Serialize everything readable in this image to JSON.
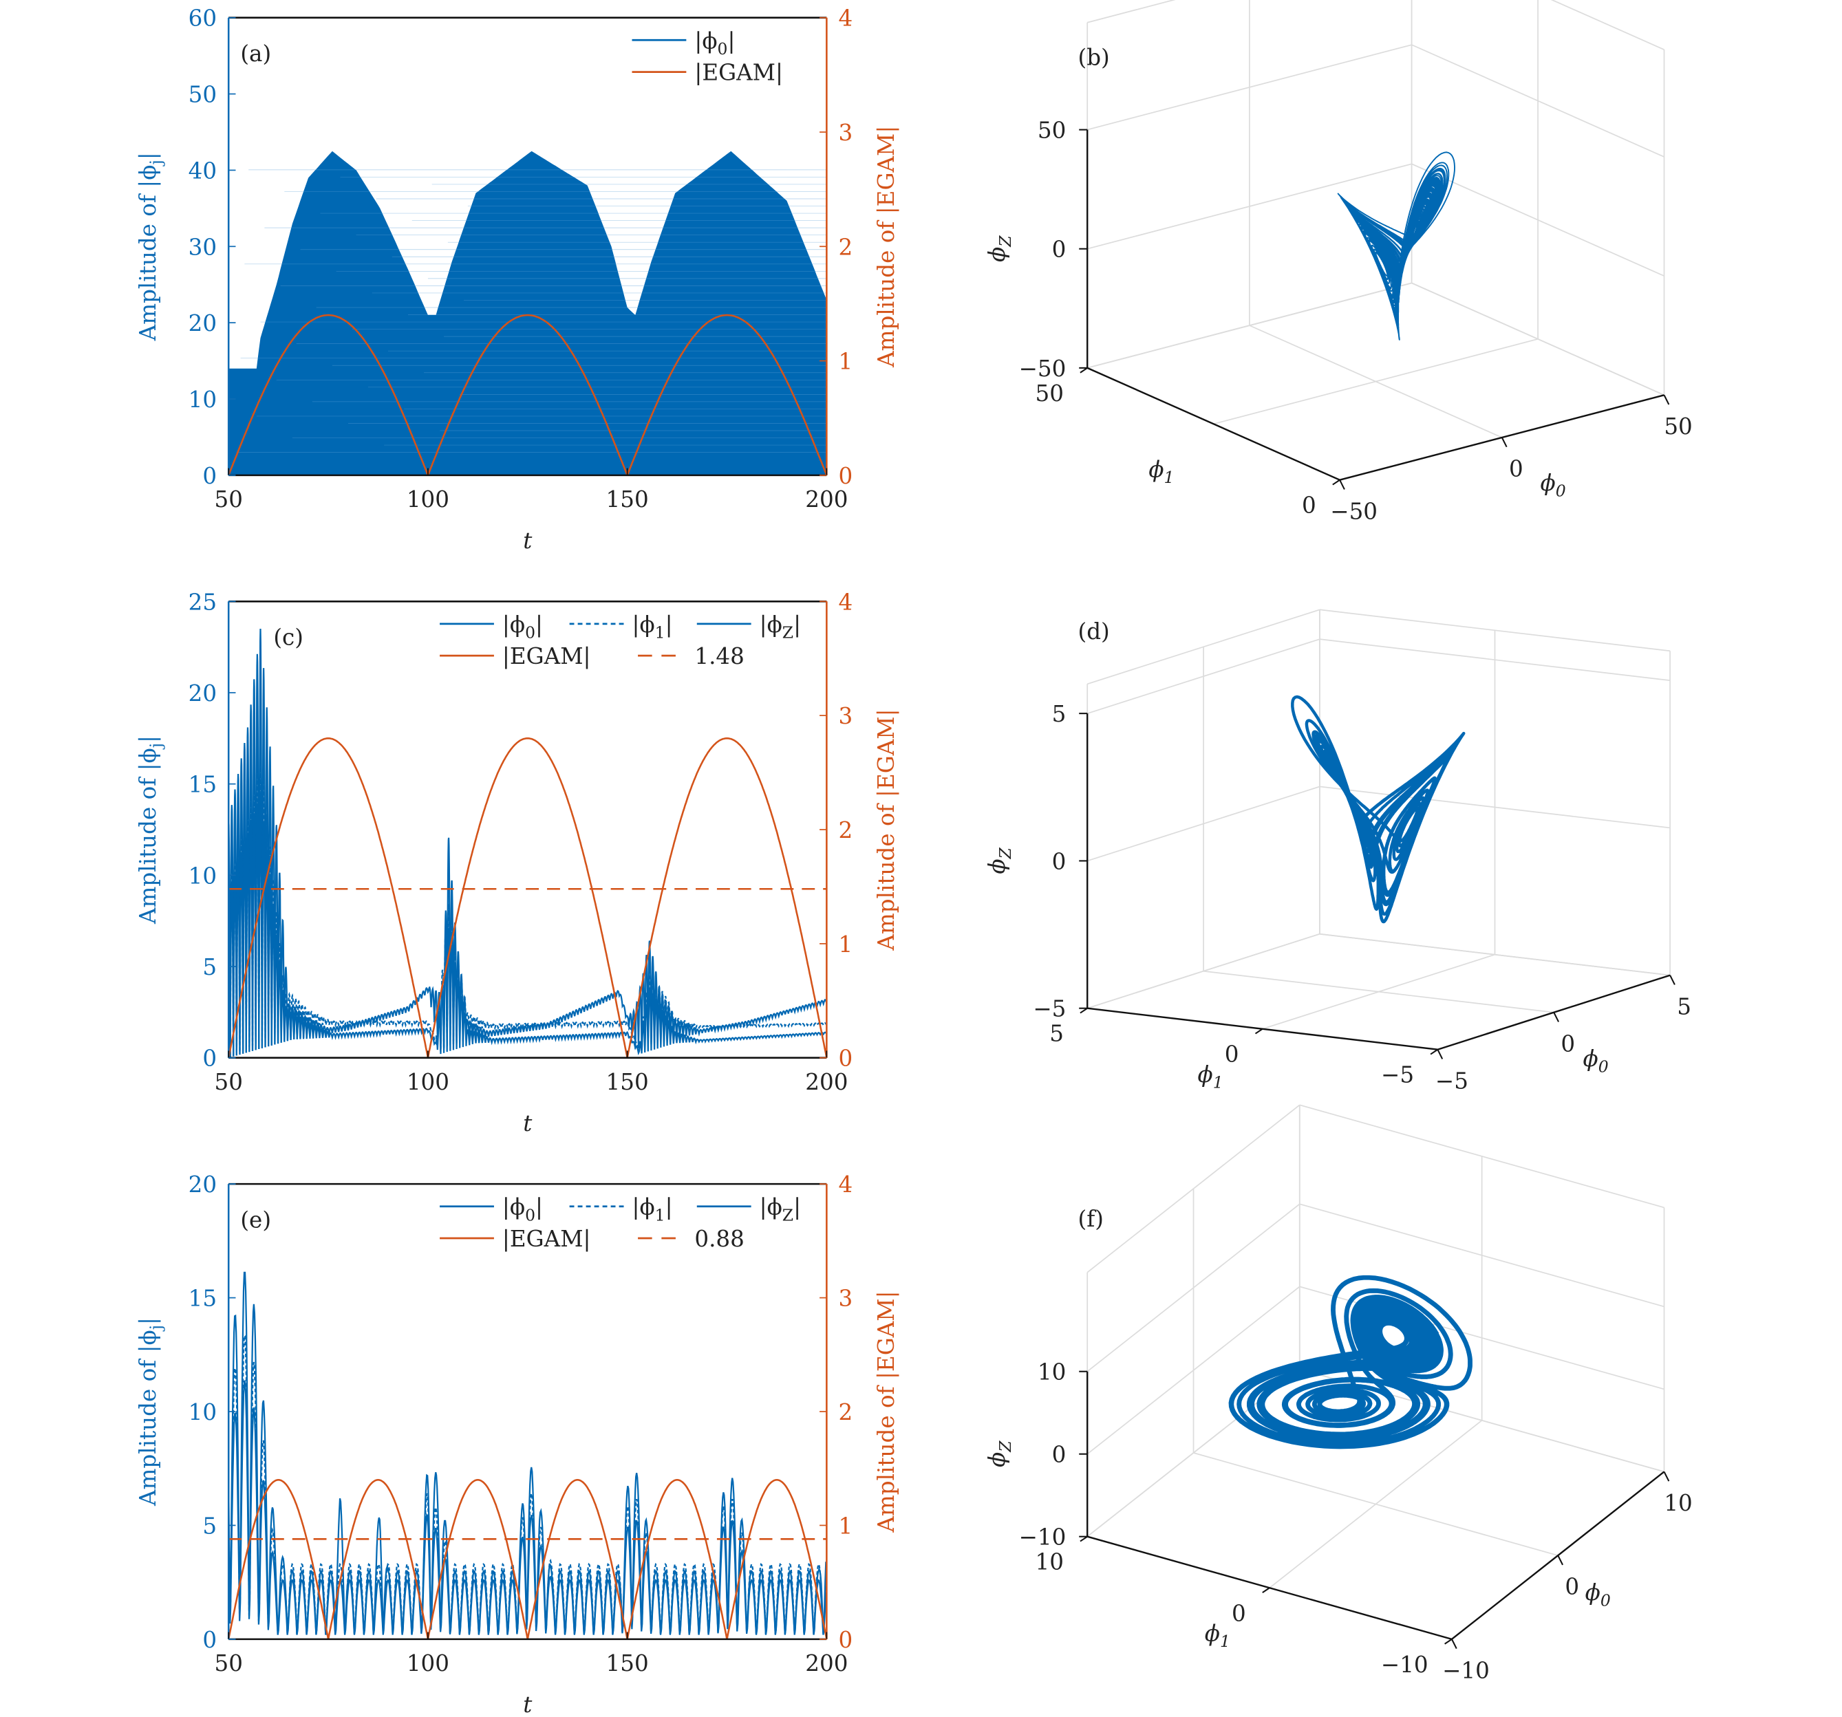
{
  "colors": {
    "blue": "#0068b3",
    "blue_text": "#0f6cb5",
    "orange": "#d4541a",
    "axis": "#111111",
    "grid": "#dcdcdc"
  },
  "chart_data": [
    {
      "id": "a",
      "type": "line",
      "panel_label": "(a)",
      "xlabel": "t",
      "ylabel_left": "Amplitude of |ϕ_j|",
      "ylabel_right": "Amplitude of |EGAM|",
      "xlim": [
        50,
        200
      ],
      "xticks": [
        "50",
        "100",
        "150",
        "200"
      ],
      "ylim_left": [
        0,
        60
      ],
      "yticks_left": [
        "0",
        "10",
        "20",
        "30",
        "40",
        "50",
        "60"
      ],
      "ylim_right": [
        0,
        4
      ],
      "yticks_right": [
        "0",
        "1",
        "2",
        "3",
        "4"
      ],
      "legend": [
        {
          "label": "|ϕ_0|",
          "color": "#0068b3",
          "style": "solid"
        },
        {
          "label": "|EGAM|",
          "color": "#d4541a",
          "style": "solid"
        }
      ],
      "series": [
        {
          "name": "|ϕ0|",
          "kind": "filled-envelope",
          "axis": "left",
          "envelope": [
            [
              50,
              14
            ],
            [
              57,
              14
            ],
            [
              58,
              18
            ],
            [
              62,
              25
            ],
            [
              66,
              33
            ],
            [
              70,
              39
            ],
            [
              76,
              42.5
            ],
            [
              82,
              40
            ],
            [
              88,
              35
            ],
            [
              95,
              27
            ],
            [
              100,
              21
            ],
            [
              102,
              21
            ],
            [
              106,
              28
            ],
            [
              112,
              37
            ],
            [
              126,
              42.5
            ],
            [
              140,
              38
            ],
            [
              146,
              30
            ],
            [
              150,
              22
            ],
            [
              152,
              21
            ],
            [
              156,
              28
            ],
            [
              162,
              37
            ],
            [
              176,
              42.5
            ],
            [
              190,
              36
            ],
            [
              200,
              23
            ]
          ]
        },
        {
          "name": "|EGAM|",
          "kind": "abs-sine",
          "axis": "right",
          "amplitude": 1.4,
          "half_period": 50,
          "phase_t0": 50
        }
      ]
    },
    {
      "id": "c",
      "type": "line",
      "panel_label": "(c)",
      "xlabel": "t",
      "ylabel_left": "Amplitude of |ϕ_j|",
      "ylabel_right": "Amplitude of |EGAM|",
      "xlim": [
        50,
        200
      ],
      "xticks": [
        "50",
        "100",
        "150",
        "200"
      ],
      "ylim_left": [
        0,
        25
      ],
      "yticks_left": [
        "0",
        "5",
        "10",
        "15",
        "20",
        "25"
      ],
      "ylim_right": [
        0,
        4
      ],
      "yticks_right": [
        "0",
        "1",
        "2",
        "3",
        "4"
      ],
      "legend": [
        {
          "label": "|ϕ_0|",
          "color": "#0068b3",
          "style": "solid"
        },
        {
          "label": "|ϕ_1|",
          "color": "#0068b3",
          "style": "dotted"
        },
        {
          "label": "|ϕ_Z|",
          "color": "#0068b3",
          "style": "solid"
        },
        {
          "label": "|EGAM|",
          "color": "#d4541a",
          "style": "solid"
        },
        {
          "label": "1.48",
          "color": "#d4541a",
          "style": "dashed"
        }
      ],
      "threshold": 1.48,
      "osc_period": 0.8,
      "series": [
        {
          "name": "|ϕ0|",
          "kind": "oscillation",
          "axis": "left",
          "style": "solid",
          "base": [
            [
              50,
              0
            ],
            [
              66,
              1
            ],
            [
              80,
              1.5
            ],
            [
              95,
              2.5
            ],
            [
              100,
              3.6
            ],
            [
              103,
              0.5
            ],
            [
              110,
              1
            ],
            [
              130,
              1.6
            ],
            [
              148,
              3.4
            ],
            [
              152,
              0.5
            ],
            [
              160,
              1
            ],
            [
              180,
              1.8
            ],
            [
              200,
              3
            ]
          ],
          "burst": [
            [
              50,
              13
            ],
            [
              55,
              18
            ],
            [
              58,
              23
            ],
            [
              62,
              12
            ],
            [
              65,
              2
            ],
            [
              70,
              1
            ],
            [
              75,
              0.3
            ],
            [
              100,
              0.3
            ],
            [
              104,
              4
            ],
            [
              105,
              12
            ],
            [
              107,
              6
            ],
            [
              110,
              1
            ],
            [
              115,
              0.3
            ],
            [
              150,
              0.3
            ],
            [
              154,
              4
            ],
            [
              155.5,
              5.8
            ],
            [
              158,
              3
            ],
            [
              162,
              1
            ],
            [
              168,
              0.2
            ],
            [
              200,
              0.2
            ]
          ]
        },
        {
          "name": "|ϕ1|",
          "kind": "oscillation",
          "axis": "left",
          "style": "dotted",
          "base": [
            [
              50,
              0
            ],
            [
              66,
              1.8
            ],
            [
              100,
              1.8
            ],
            [
              103,
              0.3
            ],
            [
              110,
              1.6
            ],
            [
              150,
              1.8
            ],
            [
              153,
              0.3
            ],
            [
              160,
              1.6
            ],
            [
              200,
              1.8
            ]
          ],
          "burst": [
            [
              50,
              10
            ],
            [
              58,
              16
            ],
            [
              64,
              2
            ],
            [
              70,
              0.8
            ],
            [
              76,
              0.2
            ],
            [
              102,
              0.2
            ],
            [
              105,
              8
            ],
            [
              110,
              0.8
            ],
            [
              116,
              0.2
            ],
            [
              153,
              0.2
            ],
            [
              155.5,
              4
            ],
            [
              162,
              0.6
            ],
            [
              168,
              0.1
            ],
            [
              200,
              0.1
            ]
          ]
        },
        {
          "name": "|ϕZ|",
          "kind": "oscillation",
          "axis": "left",
          "style": "solid",
          "base": [
            [
              50,
              0
            ],
            [
              66,
              1
            ],
            [
              100,
              1.4
            ],
            [
              103,
              0.2
            ],
            [
              112,
              0.8
            ],
            [
              150,
              1.2
            ],
            [
              153,
              0.2
            ],
            [
              162,
              0.8
            ],
            [
              200,
              1.3
            ]
          ],
          "burst": [
            [
              50,
              9
            ],
            [
              58,
              14
            ],
            [
              64,
              2
            ],
            [
              70,
              0.8
            ],
            [
              76,
              0.2
            ],
            [
              102,
              0.2
            ],
            [
              105,
              7
            ],
            [
              110,
              0.8
            ],
            [
              116,
              0.2
            ],
            [
              153,
              0.2
            ],
            [
              155.5,
              3.5
            ],
            [
              162,
              0.6
            ],
            [
              168,
              0.1
            ],
            [
              200,
              0.1
            ]
          ]
        },
        {
          "name": "|EGAM|",
          "kind": "abs-sine",
          "axis": "right",
          "amplitude": 2.8,
          "half_period": 50,
          "phase_t0": 50
        }
      ]
    },
    {
      "id": "e",
      "type": "line",
      "panel_label": "(e)",
      "xlabel": "t",
      "ylabel_left": "Amplitude of |ϕ_j|",
      "ylabel_right": "Amplitude of |EGAM|",
      "xlim": [
        50,
        200
      ],
      "xticks": [
        "50",
        "100",
        "150",
        "200"
      ],
      "ylim_left": [
        0,
        20
      ],
      "yticks_left": [
        "0",
        "5",
        "10",
        "15",
        "20"
      ],
      "ylim_right": [
        0,
        4
      ],
      "yticks_right": [
        "0",
        "1",
        "2",
        "3",
        "4"
      ],
      "legend": [
        {
          "label": "|ϕ_0|",
          "color": "#0068b3",
          "style": "solid"
        },
        {
          "label": "|ϕ_1|",
          "color": "#0068b3",
          "style": "dotted"
        },
        {
          "label": "|ϕ_Z|",
          "color": "#0068b3",
          "style": "solid"
        },
        {
          "label": "|EGAM|",
          "color": "#d4541a",
          "style": "solid"
        },
        {
          "label": "0.88",
          "color": "#d4541a",
          "style": "dashed"
        }
      ],
      "threshold": 0.88,
      "osc_period": 2.4,
      "series": [
        {
          "name": "|ϕ0|",
          "kind": "oscillation",
          "axis": "left",
          "style": "solid",
          "base": [
            [
              50,
              0
            ],
            [
              200,
              0
            ]
          ],
          "burst": [
            [
              50,
              13
            ],
            [
              55,
              17
            ],
            [
              58,
              12
            ],
            [
              62,
              4
            ],
            [
              66,
              3
            ],
            [
              76,
              3
            ],
            [
              78,
              6.3
            ],
            [
              80,
              3
            ],
            [
              86,
              3
            ],
            [
              88,
              5.8
            ],
            [
              90,
              3
            ],
            [
              98,
              3
            ],
            [
              100,
              8
            ],
            [
              103,
              7
            ],
            [
              106,
              3
            ],
            [
              122,
              3
            ],
            [
              125,
              8.3
            ],
            [
              128,
              6
            ],
            [
              131,
              3
            ],
            [
              148,
              3
            ],
            [
              151,
              8.4
            ],
            [
              154,
              6
            ],
            [
              157,
              3
            ],
            [
              172,
              3
            ],
            [
              175,
              8
            ],
            [
              178,
              6
            ],
            [
              181,
              3
            ],
            [
              198,
              3
            ],
            [
              200,
              4.8
            ]
          ]
        },
        {
          "name": "|ϕ1|",
          "kind": "oscillation",
          "axis": "left",
          "style": "dotted",
          "base": [
            [
              50,
              0
            ],
            [
              200,
              0
            ]
          ],
          "burst": [
            [
              50,
              11
            ],
            [
              55,
              14
            ],
            [
              58,
              10
            ],
            [
              62,
              3.3
            ],
            [
              98,
              3.3
            ],
            [
              100,
              7
            ],
            [
              106,
              3.3
            ],
            [
              122,
              3.3
            ],
            [
              125,
              7
            ],
            [
              131,
              3.3
            ],
            [
              148,
              3.3
            ],
            [
              151,
              7
            ],
            [
              157,
              3.3
            ],
            [
              172,
              3.3
            ],
            [
              175,
              7
            ],
            [
              181,
              3.3
            ],
            [
              200,
              3.3
            ]
          ]
        },
        {
          "name": "|ϕZ|",
          "kind": "oscillation",
          "axis": "left",
          "style": "solid",
          "base": [
            [
              50,
              0
            ],
            [
              200,
              0
            ]
          ],
          "burst": [
            [
              50,
              9
            ],
            [
              55,
              12
            ],
            [
              58,
              8
            ],
            [
              62,
              2.6
            ],
            [
              98,
              2.6
            ],
            [
              100,
              6
            ],
            [
              106,
              2.6
            ],
            [
              122,
              2.6
            ],
            [
              125,
              6
            ],
            [
              131,
              2.6
            ],
            [
              148,
              2.6
            ],
            [
              151,
              6
            ],
            [
              157,
              2.6
            ],
            [
              172,
              2.6
            ],
            [
              175,
              6
            ],
            [
              181,
              2.6
            ],
            [
              200,
              2.6
            ]
          ]
        },
        {
          "name": "|EGAM|",
          "kind": "abs-sine",
          "axis": "right",
          "amplitude": 1.4,
          "half_period": 25,
          "phase_t0": 50
        }
      ]
    },
    {
      "id": "b",
      "type": "line3d",
      "panel_label": "(b)",
      "xlabel": "ϕ_0",
      "ylabel": "ϕ_1",
      "zlabel": "ϕ_Z",
      "xticks": [
        "−50",
        "0",
        "50"
      ],
      "yticks": [
        "0",
        "50"
      ],
      "zticks": [
        "−50",
        "0",
        "50"
      ]
    },
    {
      "id": "d",
      "type": "line3d",
      "panel_label": "(d)",
      "xlabel": "ϕ_0",
      "ylabel": "ϕ_1",
      "zlabel": "ϕ_Z",
      "xticks": [
        "−5",
        "0",
        "5"
      ],
      "yticks": [
        "5",
        "0",
        "−5"
      ],
      "zticks": [
        "−5",
        "0",
        "5"
      ]
    },
    {
      "id": "f",
      "type": "line3d",
      "panel_label": "(f)",
      "xlabel": "ϕ_0",
      "ylabel": "ϕ_1",
      "zlabel": "ϕ_Z",
      "xticks": [
        "−10",
        "0",
        "10"
      ],
      "yticks": [
        "10",
        "0",
        "−10"
      ],
      "zticks": [
        "−10",
        "0",
        "10"
      ]
    }
  ]
}
